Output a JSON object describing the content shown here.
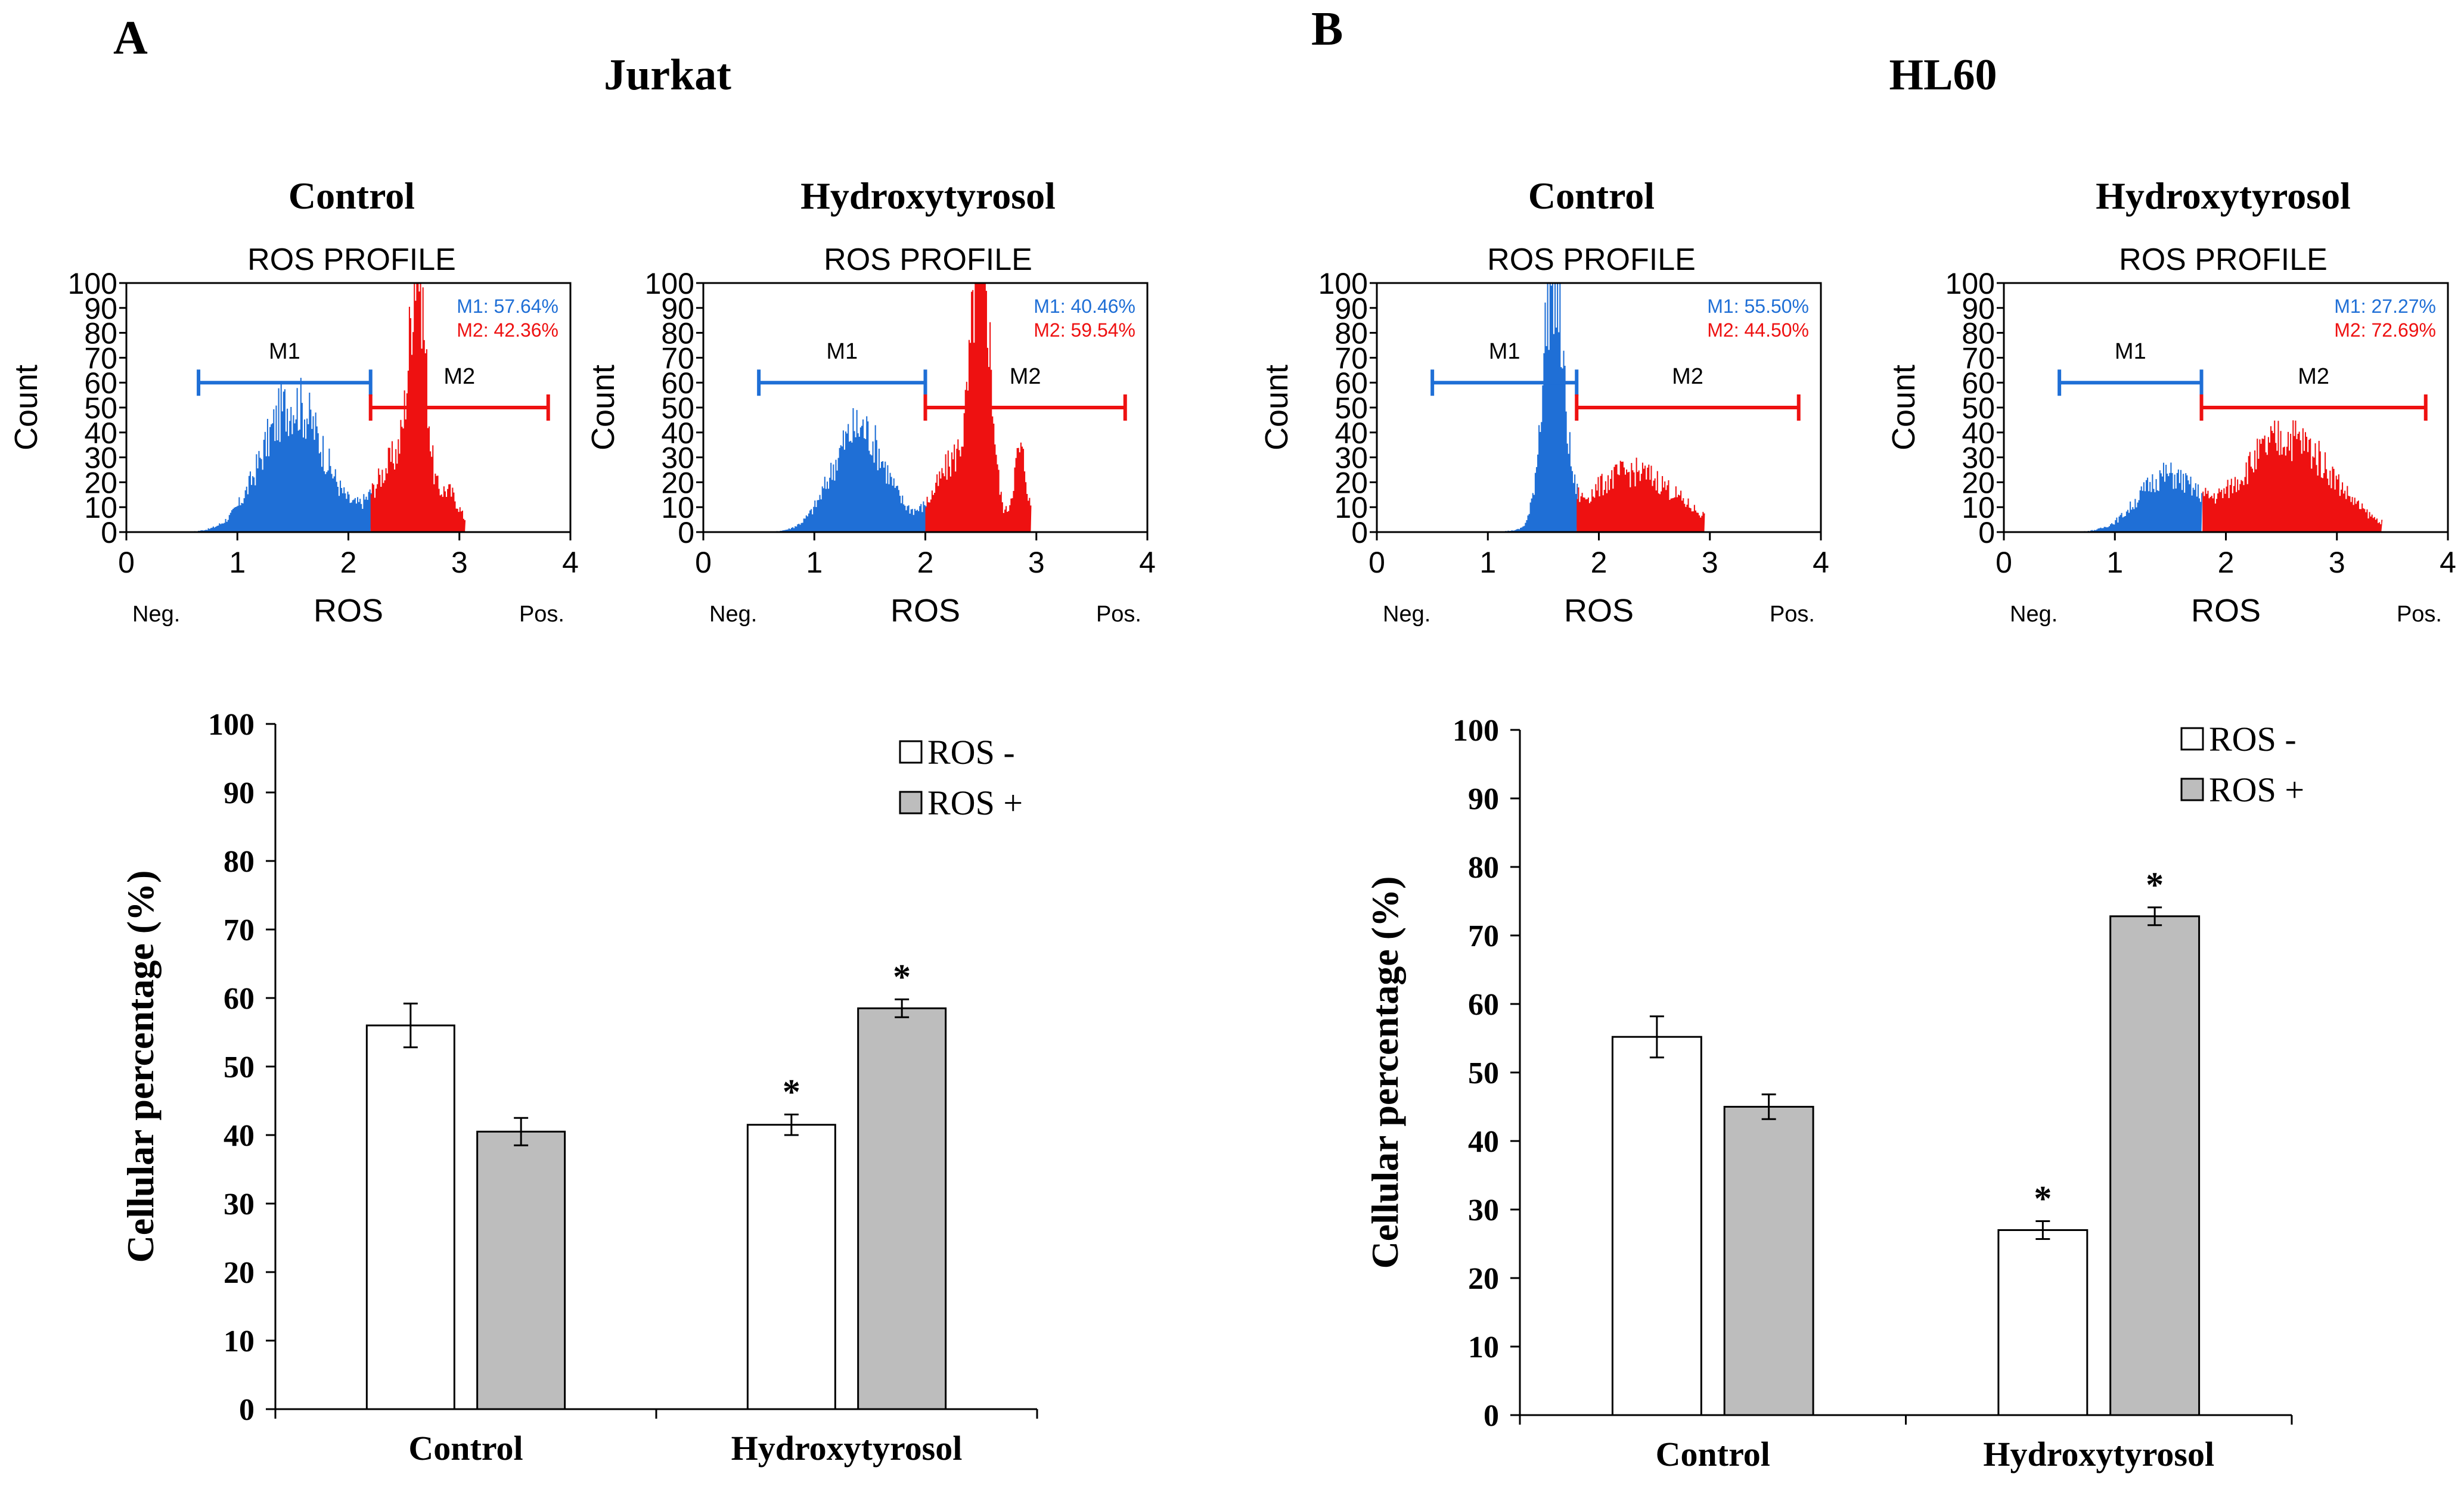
{
  "panels": [
    {
      "letter": "A",
      "title": "Jurkat",
      "flow": [
        {
          "label": "Control",
          "profile": "ROS PROFILE",
          "m1": "M1: 57.64%",
          "m2": "M2: 42.36%",
          "marker1": "M1",
          "marker2": "M2"
        },
        {
          "label": "Hydroxytyrosol",
          "profile": "ROS PROFILE",
          "m1": "M1: 40.46%",
          "m2": "M2: 59.54%",
          "marker1": "M1",
          "marker2": "M2"
        }
      ]
    },
    {
      "letter": "B",
      "title": "HL60",
      "flow": [
        {
          "label": "Control",
          "profile": "ROS PROFILE",
          "m1": "M1: 55.50%",
          "m2": "M2: 44.50%",
          "marker1": "M1",
          "marker2": "M2"
        },
        {
          "label": "Hydroxytyrosol",
          "profile": "ROS PROFILE",
          "m1": "M1: 27.27%",
          "m2": "M2: 72.69%",
          "marker1": "M1",
          "marker2": "M2"
        }
      ]
    }
  ],
  "flow_axes": {
    "ylabel": "Count",
    "xlabel": "ROS",
    "neg": "Neg.",
    "pos": "Pos.",
    "xticks": [
      0,
      1,
      2,
      3,
      4
    ],
    "yticks": [
      0,
      10,
      20,
      30,
      40,
      50,
      60,
      70,
      80,
      90,
      100
    ]
  },
  "colors": {
    "m1": "#1f6fd6",
    "m2": "#ee1111",
    "ros_neg_bar": "#ffffff",
    "ros_pos_bar": "#bdbdbd"
  },
  "flow_histograms": [
    {
      "panel": "A-Control",
      "m1_range": [
        0.65,
        2.2
      ],
      "m2_range": [
        2.2,
        3.8
      ],
      "peaks": [
        {
          "x": 1.5,
          "h": 52,
          "w": 0.28,
          "c": "m1"
        },
        {
          "x": 2.62,
          "h": 90,
          "w": 0.07,
          "c": "m2"
        },
        {
          "x": 2.45,
          "h": 30,
          "w": 0.2,
          "c": "m2"
        },
        {
          "x": 2.9,
          "h": 14,
          "w": 0.1,
          "c": "m2"
        }
      ],
      "x_max": 3.05
    },
    {
      "panel": "A-Hydroxytyrosol",
      "m1_range": [
        0.5,
        2.0
      ],
      "m2_range": [
        2.0,
        3.8
      ],
      "peaks": [
        {
          "x": 1.4,
          "h": 42,
          "w": 0.24,
          "c": "m1"
        },
        {
          "x": 2.5,
          "h": 100,
          "w": 0.08,
          "c": "m2"
        },
        {
          "x": 2.3,
          "h": 30,
          "w": 0.2,
          "c": "m2"
        },
        {
          "x": 2.85,
          "h": 32,
          "w": 0.06,
          "c": "m2"
        }
      ],
      "x_max": 2.95
    },
    {
      "panel": "B-Control",
      "m1_range": [
        0.5,
        1.8
      ],
      "m2_range": [
        1.8,
        3.8
      ],
      "peaks": [
        {
          "x": 1.58,
          "h": 100,
          "w": 0.09,
          "c": "m1"
        },
        {
          "x": 2.3,
          "h": 24,
          "w": 0.4,
          "c": "m2"
        }
      ],
      "x_max": 2.95
    },
    {
      "panel": "B-Hydroxytyrosol",
      "m1_range": [
        0.5,
        1.78
      ],
      "m2_range": [
        1.78,
        3.8
      ],
      "peaks": [
        {
          "x": 1.45,
          "h": 22,
          "w": 0.25,
          "c": "m1"
        },
        {
          "x": 2.55,
          "h": 38,
          "w": 0.4,
          "c": "m2"
        }
      ],
      "x_max": 3.4
    }
  ],
  "chart_data": [
    {
      "type": "bar",
      "panel": "A",
      "categories": [
        "Control",
        "Hydroxytyrosol"
      ],
      "series": [
        {
          "name": "ROS -",
          "values": [
            56,
            41.5
          ],
          "errors": [
            3.2,
            1.5
          ],
          "significant": [
            false,
            true
          ]
        },
        {
          "name": "ROS +",
          "values": [
            40.5,
            58.5
          ],
          "errors": [
            2,
            1.3
          ],
          "significant": [
            false,
            true
          ]
        }
      ],
      "ylabel": "Cellular  percentage  (%)",
      "ylim": [
        0,
        100
      ],
      "yticks": [
        0,
        10,
        20,
        30,
        40,
        50,
        60,
        70,
        80,
        90,
        100
      ],
      "legend": "top-right",
      "marker": "*"
    },
    {
      "type": "bar",
      "panel": "B",
      "categories": [
        "Control",
        "Hydroxytyrosol"
      ],
      "series": [
        {
          "name": "ROS -",
          "values": [
            55.2,
            27
          ],
          "errors": [
            3,
            1.3
          ],
          "significant": [
            false,
            true
          ]
        },
        {
          "name": "ROS +",
          "values": [
            45,
            72.8
          ],
          "errors": [
            1.8,
            1.3
          ],
          "significant": [
            false,
            true
          ]
        }
      ],
      "ylabel": "Cellular  percentage  (%)",
      "ylim": [
        0,
        100
      ],
      "yticks": [
        0,
        10,
        20,
        30,
        40,
        50,
        60,
        70,
        80,
        90,
        100
      ],
      "legend": "top-right",
      "marker": "*"
    }
  ]
}
